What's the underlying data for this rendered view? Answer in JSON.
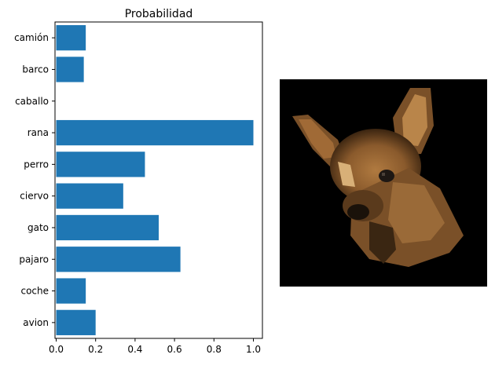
{
  "chart_data": {
    "type": "bar",
    "orientation": "horizontal",
    "title": "Probabilidad",
    "xlabel": "",
    "ylabel": "",
    "categories": [
      "avion",
      "coche",
      "pajaro",
      "gato",
      "ciervo",
      "perro",
      "rana",
      "caballo",
      "barco",
      "camión"
    ],
    "values": [
      0.2,
      0.15,
      0.63,
      0.52,
      0.34,
      0.45,
      1.0,
      0.0,
      0.14,
      0.15
    ],
    "xlim": [
      0.0,
      1.05
    ],
    "xticks": [
      "0.0",
      "0.2",
      "0.4",
      "0.6",
      "0.8",
      "1.0"
    ],
    "bar_color": "#1f77b4",
    "grid": false,
    "legend": "none"
  },
  "image_panel": {
    "description_icon": "dog-photo-icon",
    "background_color": "#000000"
  }
}
